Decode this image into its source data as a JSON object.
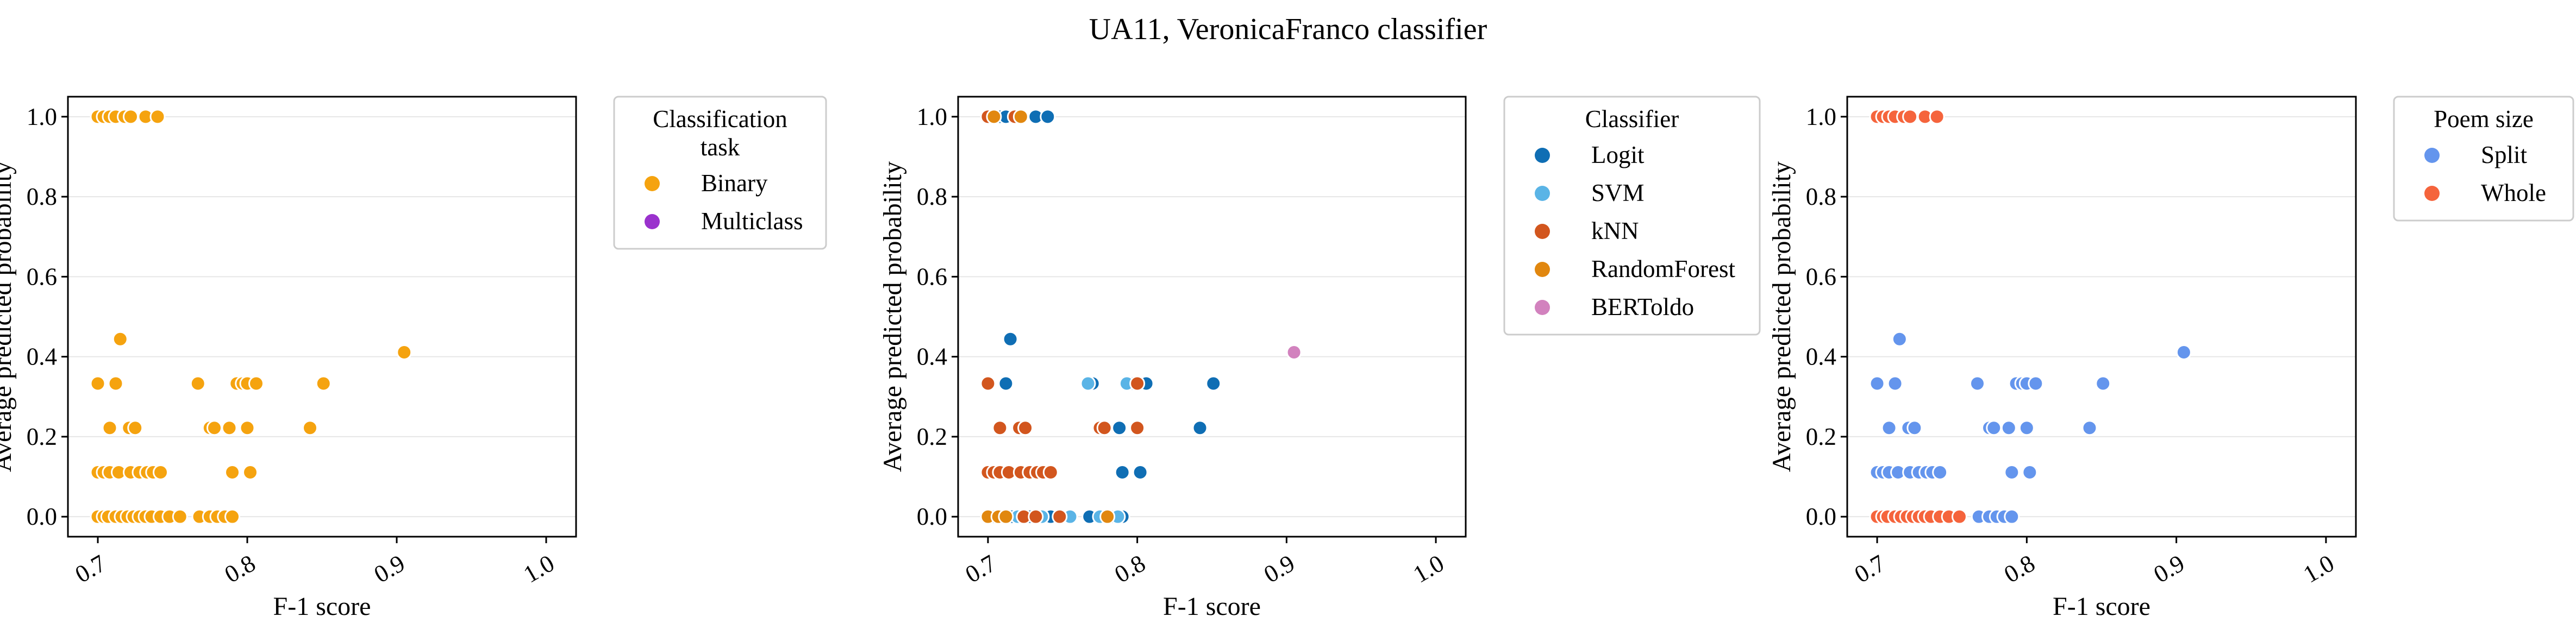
{
  "figure": {
    "title": "UA11, VeronicaFranco classifier"
  },
  "chart_data": [
    {
      "type": "scatter",
      "xlabel": "F-1 score",
      "ylabel": "Average predicted probability",
      "xlim": [
        0.68,
        1.02
      ],
      "ylim": [
        -0.05,
        1.05
      ],
      "xticks": [
        "0.7",
        "0.8",
        "0.9",
        "1.0"
      ],
      "yticks": [
        "0.0",
        "0.2",
        "0.4",
        "0.6",
        "0.8",
        "1.0"
      ],
      "grid": "horizontal",
      "legend": {
        "title_lines": [
          "Classification",
          "task"
        ],
        "placement": "outside-right",
        "entries": [
          {
            "label": "Binary",
            "color": "#f5a30f"
          },
          {
            "label": "Multiclass",
            "color": "#9a32cd"
          }
        ]
      },
      "series": [
        {
          "name": "Binary",
          "color": "#f5a30f",
          "points": [
            [
              0.7,
              1.0
            ],
            [
              0.704,
              1.0
            ],
            [
              0.708,
              1.0
            ],
            [
              0.712,
              1.0
            ],
            [
              0.718,
              1.0
            ],
            [
              0.722,
              1.0
            ],
            [
              0.732,
              1.0
            ],
            [
              0.74,
              1.0
            ],
            [
              0.715,
              0.444
            ],
            [
              0.905,
              0.411
            ],
            [
              0.7,
              0.333
            ],
            [
              0.712,
              0.333
            ],
            [
              0.767,
              0.333
            ],
            [
              0.793,
              0.333
            ],
            [
              0.797,
              0.333
            ],
            [
              0.8,
              0.333
            ],
            [
              0.806,
              0.333
            ],
            [
              0.851,
              0.333
            ],
            [
              0.708,
              0.222
            ],
            [
              0.721,
              0.222
            ],
            [
              0.725,
              0.222
            ],
            [
              0.775,
              0.222
            ],
            [
              0.778,
              0.222
            ],
            [
              0.788,
              0.222
            ],
            [
              0.8,
              0.222
            ],
            [
              0.842,
              0.222
            ],
            [
              0.7,
              0.111
            ],
            [
              0.704,
              0.111
            ],
            [
              0.708,
              0.111
            ],
            [
              0.714,
              0.111
            ],
            [
              0.722,
              0.111
            ],
            [
              0.728,
              0.111
            ],
            [
              0.733,
              0.111
            ],
            [
              0.737,
              0.111
            ],
            [
              0.742,
              0.111
            ],
            [
              0.79,
              0.111
            ],
            [
              0.802,
              0.111
            ],
            [
              0.7,
              0.0
            ],
            [
              0.704,
              0.0
            ],
            [
              0.707,
              0.0
            ],
            [
              0.712,
              0.0
            ],
            [
              0.716,
              0.0
            ],
            [
              0.72,
              0.0
            ],
            [
              0.724,
              0.0
            ],
            [
              0.728,
              0.0
            ],
            [
              0.732,
              0.0
            ],
            [
              0.736,
              0.0
            ],
            [
              0.742,
              0.0
            ],
            [
              0.748,
              0.0
            ],
            [
              0.755,
              0.0
            ],
            [
              0.768,
              0.0
            ],
            [
              0.775,
              0.0
            ],
            [
              0.78,
              0.0
            ],
            [
              0.785,
              0.0
            ],
            [
              0.79,
              0.0
            ]
          ]
        },
        {
          "name": "Multiclass",
          "color": "#9a32cd",
          "points": []
        }
      ]
    },
    {
      "type": "scatter",
      "xlabel": "F-1 score",
      "ylabel": "Average predicted probability",
      "xlim": [
        0.68,
        1.02
      ],
      "ylim": [
        -0.05,
        1.05
      ],
      "xticks": [
        "0.7",
        "0.8",
        "0.9",
        "1.0"
      ],
      "yticks": [
        "0.0",
        "0.2",
        "0.4",
        "0.6",
        "0.8",
        "1.0"
      ],
      "grid": "horizontal",
      "legend": {
        "title_lines": [
          "Classifier"
        ],
        "placement": "outside-right",
        "entries": [
          {
            "label": "Logit",
            "color": "#0f6eb4"
          },
          {
            "label": "SVM",
            "color": "#5ab4e6"
          },
          {
            "label": "kNN",
            "color": "#d2561e"
          },
          {
            "label": "RandomForest",
            "color": "#e1870f"
          },
          {
            "label": "BERToldo",
            "color": "#d282be"
          }
        ]
      },
      "series": [
        {
          "name": "Logit",
          "color": "#0f6eb4",
          "points": [
            [
              0.708,
              1.0
            ],
            [
              0.712,
              1.0
            ],
            [
              0.732,
              1.0
            ],
            [
              0.74,
              1.0
            ],
            [
              0.715,
              0.444
            ],
            [
              0.712,
              0.333
            ],
            [
              0.77,
              0.333
            ],
            [
              0.797,
              0.333
            ],
            [
              0.806,
              0.333
            ],
            [
              0.851,
              0.333
            ],
            [
              0.788,
              0.222
            ],
            [
              0.842,
              0.222
            ],
            [
              0.79,
              0.111
            ],
            [
              0.802,
              0.111
            ],
            [
              0.704,
              0.0
            ],
            [
              0.716,
              0.0
            ],
            [
              0.728,
              0.0
            ],
            [
              0.742,
              0.0
            ],
            [
              0.768,
              0.0
            ],
            [
              0.778,
              0.0
            ],
            [
              0.79,
              0.0
            ]
          ]
        },
        {
          "name": "SVM",
          "color": "#5ab4e6",
          "points": [
            [
              0.767,
              0.333
            ],
            [
              0.793,
              0.333
            ],
            [
              0.72,
              0.0
            ],
            [
              0.736,
              0.0
            ],
            [
              0.755,
              0.0
            ],
            [
              0.775,
              0.0
            ],
            [
              0.783,
              0.0
            ],
            [
              0.787,
              0.0
            ]
          ]
        },
        {
          "name": "kNN",
          "color": "#d2561e",
          "points": [
            [
              0.7,
              1.0
            ],
            [
              0.718,
              1.0
            ],
            [
              0.7,
              0.333
            ],
            [
              0.8,
              0.333
            ],
            [
              0.708,
              0.222
            ],
            [
              0.721,
              0.222
            ],
            [
              0.725,
              0.222
            ],
            [
              0.775,
              0.222
            ],
            [
              0.778,
              0.222
            ],
            [
              0.8,
              0.222
            ],
            [
              0.7,
              0.111
            ],
            [
              0.704,
              0.111
            ],
            [
              0.708,
              0.111
            ],
            [
              0.714,
              0.111
            ],
            [
              0.722,
              0.111
            ],
            [
              0.728,
              0.111
            ],
            [
              0.733,
              0.111
            ],
            [
              0.737,
              0.111
            ],
            [
              0.742,
              0.111
            ],
            [
              0.724,
              0.0
            ],
            [
              0.732,
              0.0
            ],
            [
              0.748,
              0.0
            ]
          ]
        },
        {
          "name": "RandomForest",
          "color": "#e1870f",
          "points": [
            [
              0.704,
              1.0
            ],
            [
              0.722,
              1.0
            ],
            [
              0.7,
              0.0
            ],
            [
              0.707,
              0.0
            ],
            [
              0.712,
              0.0
            ],
            [
              0.78,
              0.0
            ]
          ]
        },
        {
          "name": "BERToldo",
          "color": "#d282be",
          "points": [
            [
              0.905,
              0.411
            ]
          ]
        }
      ]
    },
    {
      "type": "scatter",
      "xlabel": "F-1 score",
      "ylabel": "Average predicted probability",
      "xlim": [
        0.68,
        1.02
      ],
      "ylim": [
        -0.05,
        1.05
      ],
      "xticks": [
        "0.7",
        "0.8",
        "0.9",
        "1.0"
      ],
      "yticks": [
        "0.0",
        "0.2",
        "0.4",
        "0.6",
        "0.8",
        "1.0"
      ],
      "grid": "horizontal",
      "legend": {
        "title_lines": [
          "Poem size"
        ],
        "placement": "outside-right",
        "entries": [
          {
            "label": "Split",
            "color": "#6495ed"
          },
          {
            "label": "Whole",
            "color": "#f5643c"
          }
        ]
      },
      "series": [
        {
          "name": "Split",
          "color": "#6495ed",
          "points": [
            [
              0.715,
              0.444
            ],
            [
              0.905,
              0.411
            ],
            [
              0.7,
              0.333
            ],
            [
              0.712,
              0.333
            ],
            [
              0.767,
              0.333
            ],
            [
              0.793,
              0.333
            ],
            [
              0.797,
              0.333
            ],
            [
              0.8,
              0.333
            ],
            [
              0.806,
              0.333
            ],
            [
              0.851,
              0.333
            ],
            [
              0.708,
              0.222
            ],
            [
              0.721,
              0.222
            ],
            [
              0.725,
              0.222
            ],
            [
              0.775,
              0.222
            ],
            [
              0.778,
              0.222
            ],
            [
              0.788,
              0.222
            ],
            [
              0.8,
              0.222
            ],
            [
              0.842,
              0.222
            ],
            [
              0.7,
              0.111
            ],
            [
              0.704,
              0.111
            ],
            [
              0.708,
              0.111
            ],
            [
              0.714,
              0.111
            ],
            [
              0.722,
              0.111
            ],
            [
              0.728,
              0.111
            ],
            [
              0.733,
              0.111
            ],
            [
              0.737,
              0.111
            ],
            [
              0.742,
              0.111
            ],
            [
              0.79,
              0.111
            ],
            [
              0.802,
              0.111
            ],
            [
              0.768,
              0.0
            ],
            [
              0.775,
              0.0
            ],
            [
              0.78,
              0.0
            ],
            [
              0.785,
              0.0
            ],
            [
              0.79,
              0.0
            ]
          ]
        },
        {
          "name": "Whole",
          "color": "#f5643c",
          "points": [
            [
              0.7,
              1.0
            ],
            [
              0.704,
              1.0
            ],
            [
              0.708,
              1.0
            ],
            [
              0.712,
              1.0
            ],
            [
              0.718,
              1.0
            ],
            [
              0.722,
              1.0
            ],
            [
              0.732,
              1.0
            ],
            [
              0.74,
              1.0
            ],
            [
              0.7,
              0.0
            ],
            [
              0.704,
              0.0
            ],
            [
              0.707,
              0.0
            ],
            [
              0.712,
              0.0
            ],
            [
              0.716,
              0.0
            ],
            [
              0.72,
              0.0
            ],
            [
              0.724,
              0.0
            ],
            [
              0.728,
              0.0
            ],
            [
              0.732,
              0.0
            ],
            [
              0.736,
              0.0
            ],
            [
              0.742,
              0.0
            ],
            [
              0.748,
              0.0
            ],
            [
              0.755,
              0.0
            ]
          ]
        }
      ]
    }
  ]
}
